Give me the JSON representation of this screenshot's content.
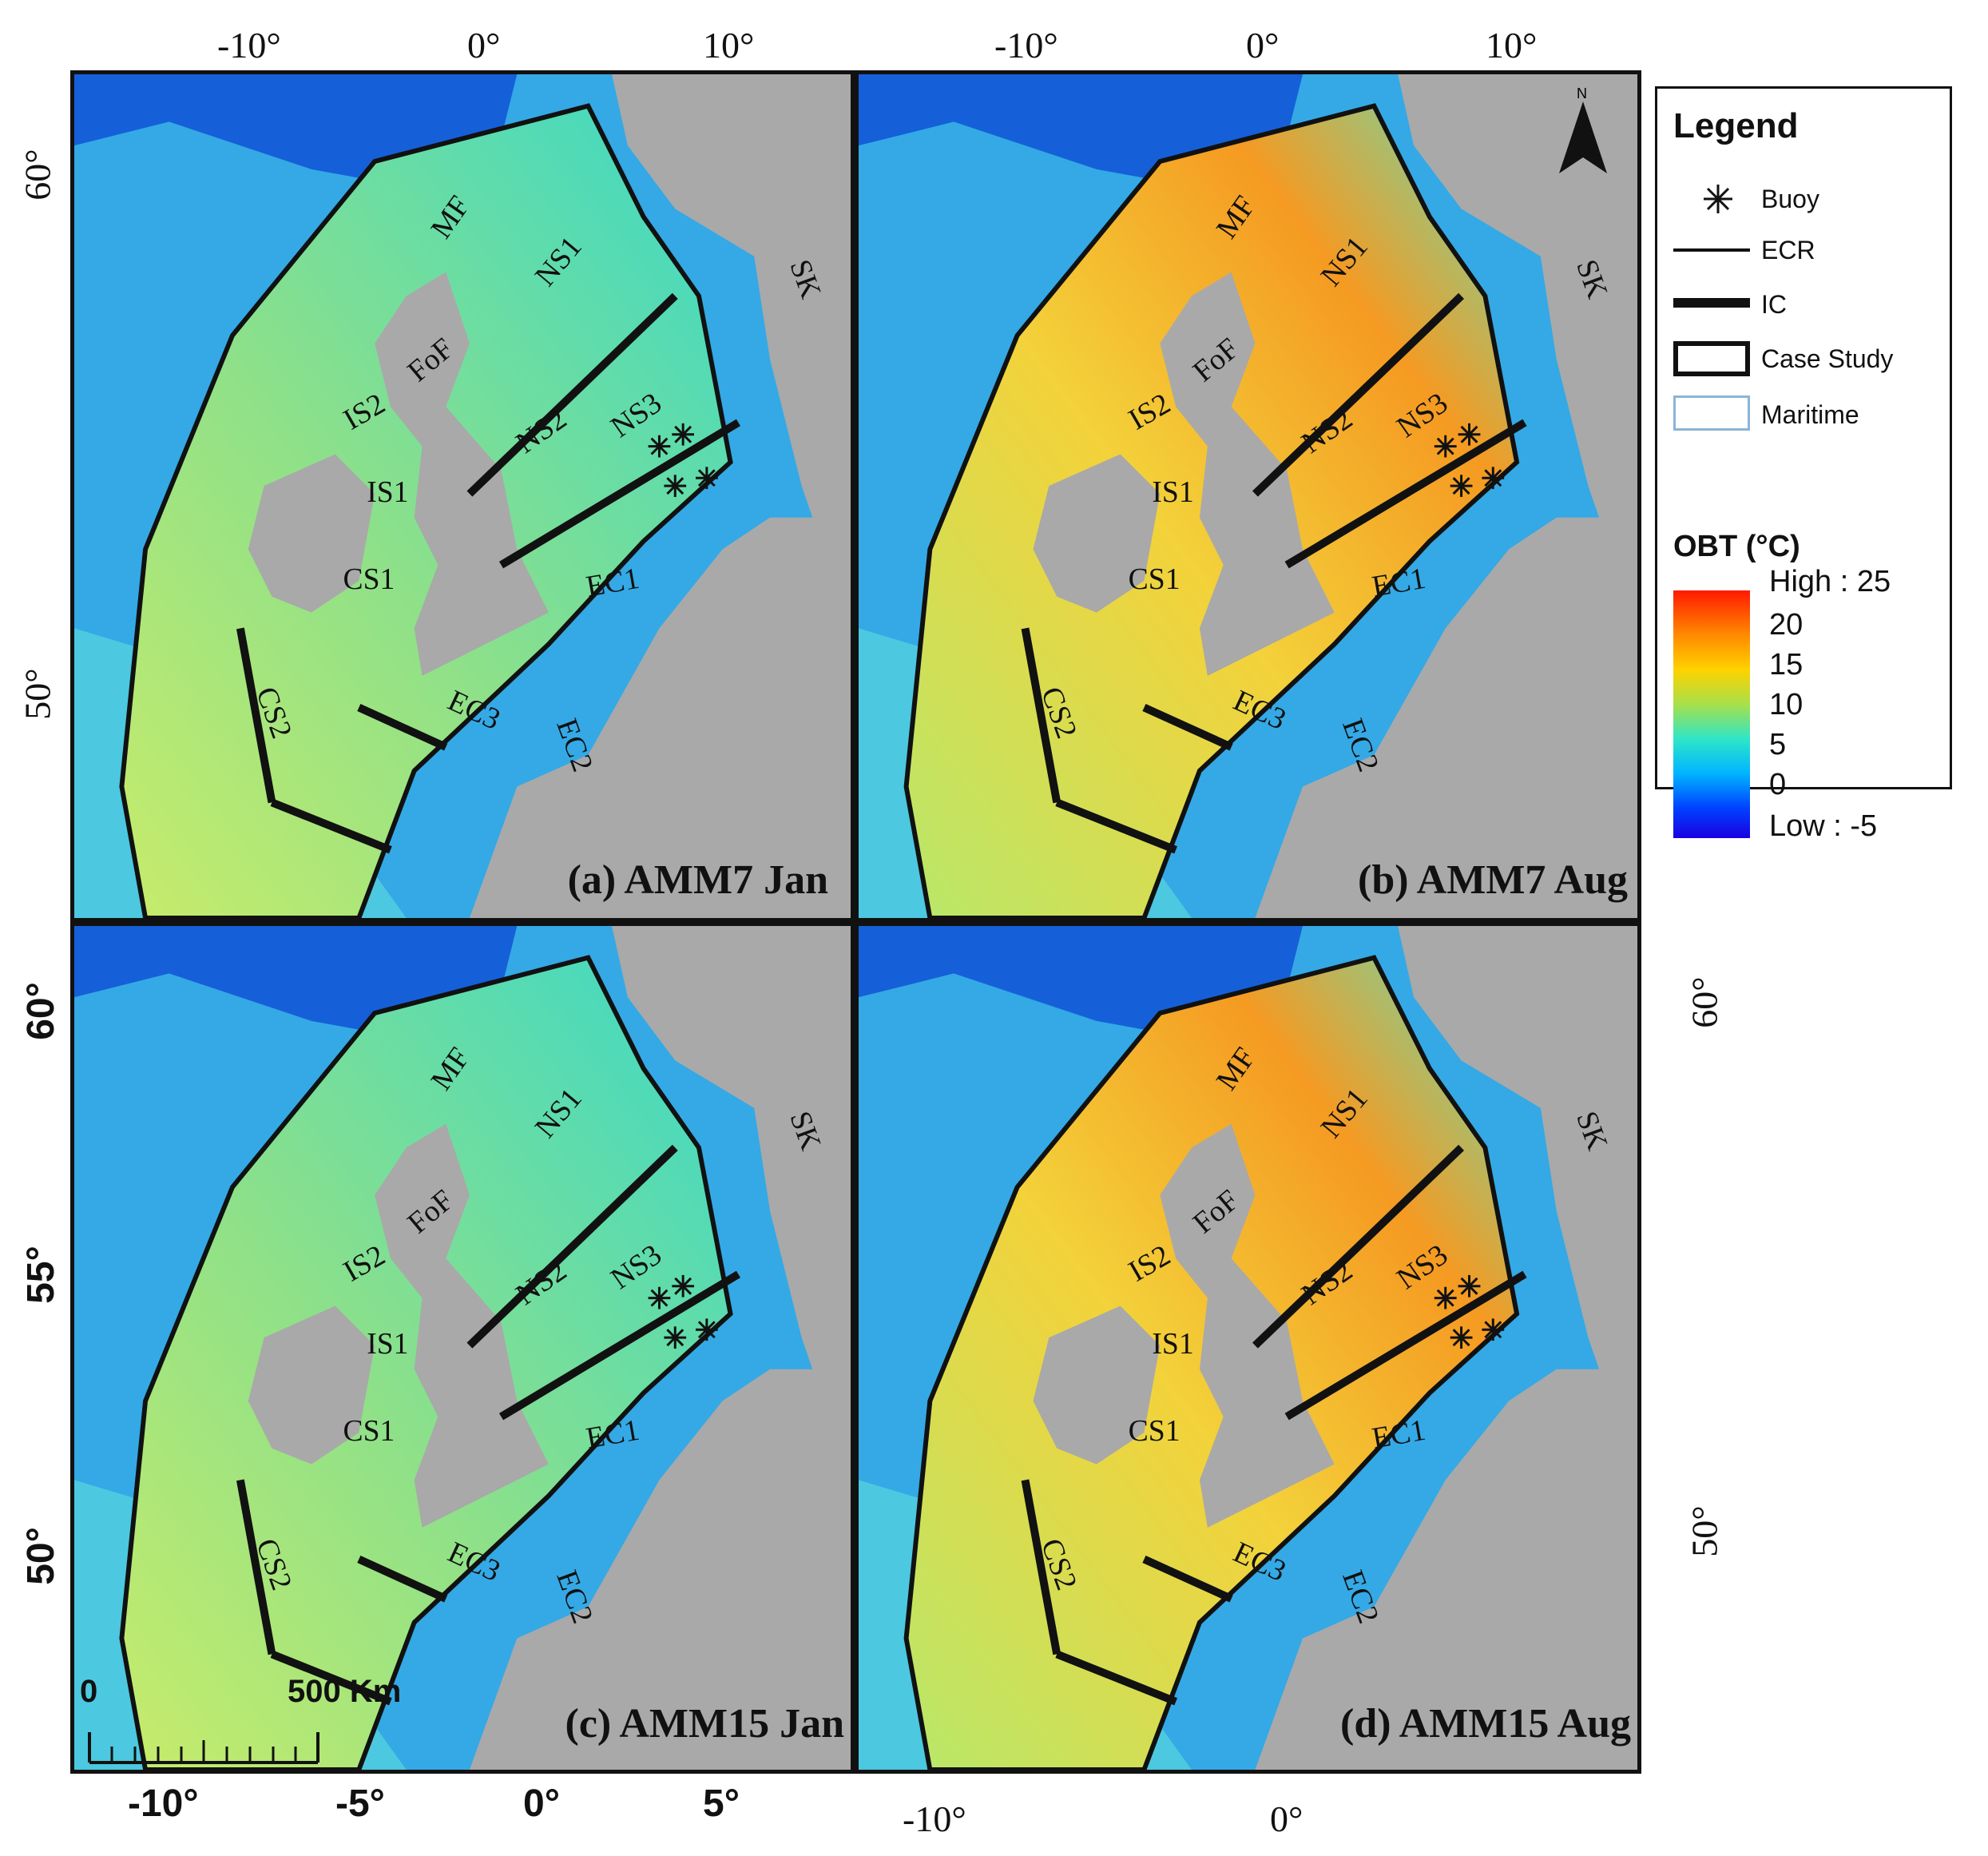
{
  "panels": [
    {
      "id": "a",
      "title": "(a) AMM7 Jan",
      "season": "jan"
    },
    {
      "id": "b",
      "title": "(b) AMM7 Aug",
      "season": "aug"
    },
    {
      "id": "c",
      "title": "(c) AMM15 Jan",
      "season": "jan"
    },
    {
      "id": "d",
      "title": "(d) AMM15 Aug",
      "season": "aug"
    }
  ],
  "region_labels": [
    "MF",
    "NS1",
    "SK",
    "FoF",
    "IS2",
    "NS2",
    "NS3",
    "IS1",
    "CS1",
    "EC1",
    "CS2",
    "EC3",
    "EC2"
  ],
  "top_axis": {
    "left_panel": [
      "-10°",
      "0°",
      "10°"
    ],
    "right_panel": [
      "-10°",
      "0°",
      "10°"
    ]
  },
  "left_axis": {
    "top_panel": [
      "60°",
      "50°"
    ],
    "bottom_panel": [
      "60°",
      "55°",
      "50°"
    ]
  },
  "right_axis": {
    "bottom_panel": [
      "60°",
      "50°"
    ]
  },
  "bottom_axis": {
    "left_panel": [
      "-10°",
      "-5°",
      "0°",
      "5°"
    ],
    "right_panel": [
      "-10°",
      "0°"
    ]
  },
  "scale_bar": {
    "start": "0",
    "end": "500 Km"
  },
  "north_arrow": "N",
  "legend": {
    "title": "Legend",
    "items": [
      {
        "label": "Buoy",
        "symbol": "asterisk-icon"
      },
      {
        "label": "ECR",
        "symbol": "thin-line-icon"
      },
      {
        "label": "IC",
        "symbol": "thick-line-icon"
      },
      {
        "label": "Case Study",
        "symbol": "box-icon"
      },
      {
        "label": "Maritime",
        "symbol": "maritime-box-icon"
      }
    ],
    "obt_title": "OBT (°C)",
    "ramp_labels": [
      "High : 25",
      "20",
      "15",
      "10",
      "5",
      "0",
      "Low : -5"
    ]
  },
  "colors": {
    "land": "#a9a9a9",
    "deep": "#1560d8",
    "shelf_jan": "#3fd8c0",
    "shelf_aug": "#f5a020"
  }
}
